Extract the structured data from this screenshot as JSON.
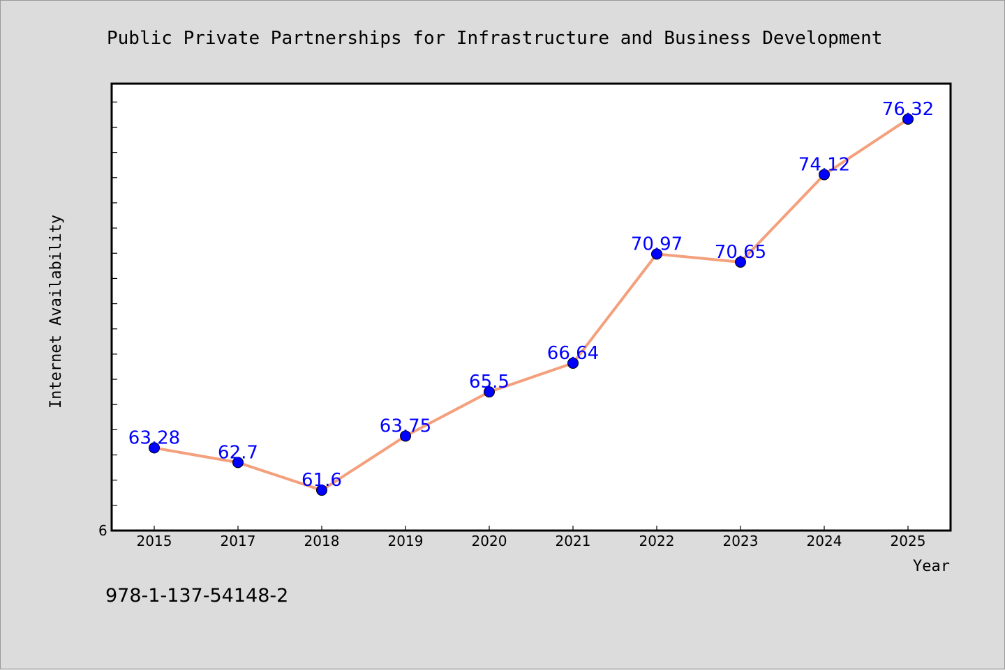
{
  "chart_data": {
    "type": "line",
    "title": "Public Private Partnerships for Infrastructure and Business Development",
    "xlabel": "Year",
    "ylabel": "Internet Availability",
    "categories": [
      "2015",
      "2017",
      "2018",
      "2019",
      "2020",
      "2021",
      "2022",
      "2023",
      "2024",
      "2025"
    ],
    "series": [
      {
        "values": [
          63.28,
          62.7,
          61.6,
          63.75,
          65.5,
          66.64,
          70.97,
          70.65,
          74.12,
          76.32
        ],
        "data_labels": [
          "63.28",
          "62.7",
          "61.6",
          "63.75",
          "65.5",
          "66.64",
          "70.97",
          "70.65",
          "74.12",
          "76.32"
        ]
      }
    ],
    "y_tick_labels": [
      "6"
    ],
    "ylim": [
      60,
      77.7
    ],
    "grid": false,
    "legend": "none",
    "colors": {
      "line": "#f4a07c",
      "marker": "#0000ff",
      "data_label": "#0000ff",
      "plot_background": "#ffffff",
      "figure_background": "#dcdcdc"
    }
  },
  "footer": {
    "isbn": "978-1-137-54148-2"
  }
}
